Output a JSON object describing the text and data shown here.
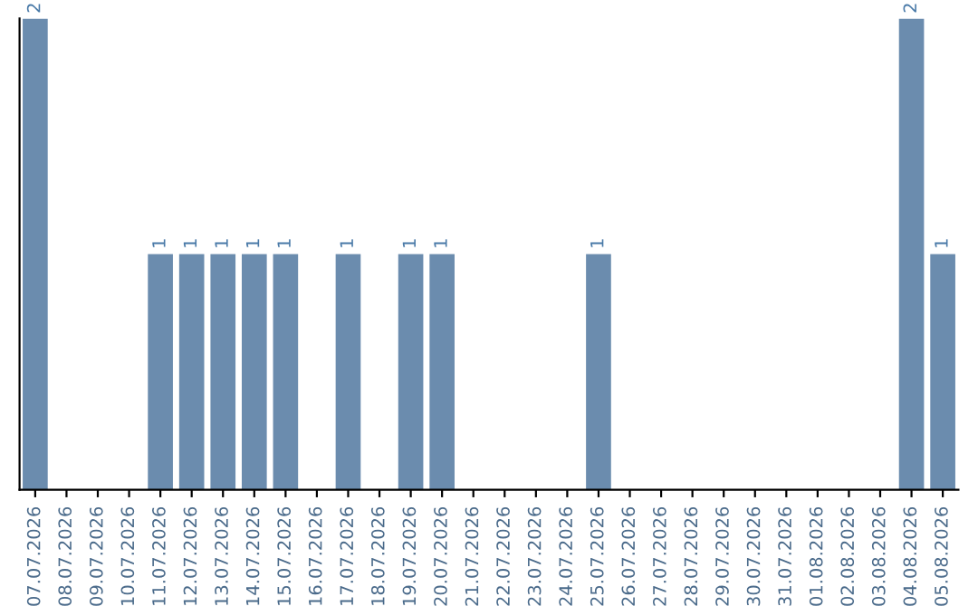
{
  "chart_data": {
    "type": "bar",
    "categories": [
      "07.07.2026",
      "08.07.2026",
      "09.07.2026",
      "10.07.2026",
      "11.07.2026",
      "12.07.2026",
      "13.07.2026",
      "14.07.2026",
      "15.07.2026",
      "16.07.2026",
      "17.07.2026",
      "18.07.2026",
      "19.07.2026",
      "20.07.2026",
      "21.07.2026",
      "22.07.2026",
      "23.07.2026",
      "24.07.2026",
      "25.07.2026",
      "26.07.2026",
      "27.07.2026",
      "28.07.2026",
      "29.07.2026",
      "30.07.2026",
      "31.07.2026",
      "01.08.2026",
      "02.08.2026",
      "03.08.2026",
      "04.08.2026",
      "05.08.2026"
    ],
    "values": [
      2,
      0,
      0,
      0,
      1,
      1,
      1,
      1,
      1,
      0,
      1,
      0,
      1,
      1,
      0,
      0,
      0,
      0,
      1,
      0,
      0,
      0,
      0,
      0,
      0,
      0,
      0,
      0,
      2,
      1
    ],
    "value_labels": [
      "2",
      null,
      null,
      null,
      "1",
      "1",
      "1",
      "1",
      "1",
      null,
      "1",
      null,
      "1",
      "1",
      null,
      null,
      null,
      null,
      "1",
      null,
      null,
      null,
      null,
      null,
      null,
      null,
      null,
      null,
      "2",
      "1"
    ],
    "color": "#6b8cae",
    "ylim": [
      0,
      2
    ],
    "tick_labels": "x",
    "grid": false,
    "legend": false
  }
}
